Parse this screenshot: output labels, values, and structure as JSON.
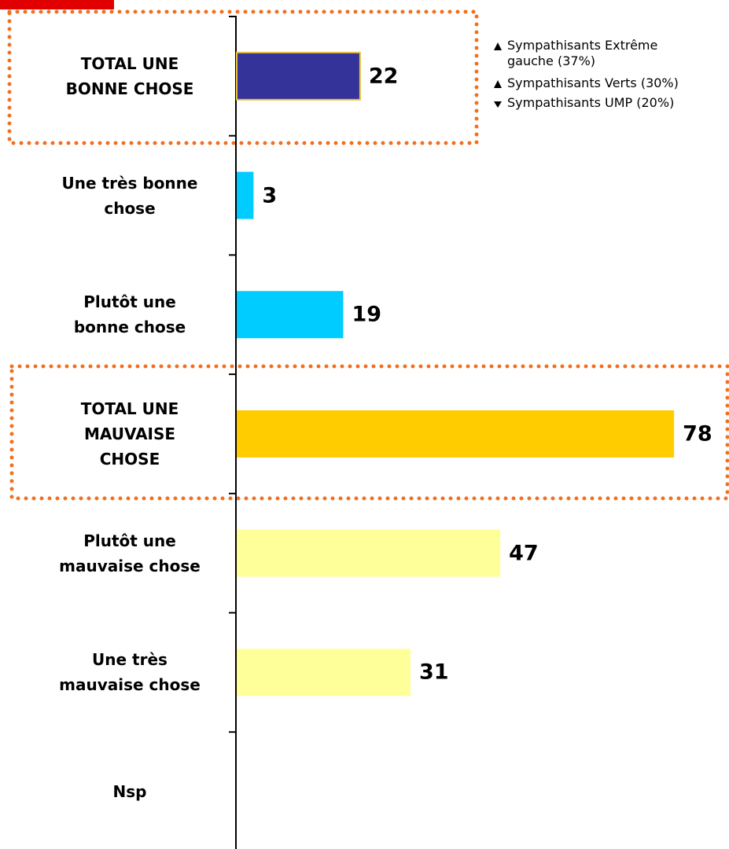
{
  "chart_data": {
    "type": "bar",
    "orientation": "horizontal",
    "categories": [
      "TOTAL UNE\nBONNE CHOSE",
      "Une très bonne\nchose",
      "Plutôt une\nbonne chose",
      "TOTAL UNE\nMAUVAISE\nCHOSE",
      "Plutôt une\nmauvaise chose",
      "Une très\nmauvaise chose",
      "Nsp"
    ],
    "values": [
      22,
      3,
      19,
      78,
      47,
      31,
      null
    ],
    "colors": [
      "#333399",
      "#00ccff",
      "#00ccff",
      "#ffcc00",
      "#ffff99",
      "#ffff99",
      null
    ],
    "xlim": [
      0,
      100
    ],
    "annotations": [
      {
        "text": "Sympathisants Extrême\ngauche (37%)",
        "direction": "up"
      },
      {
        "text": "Sympathisants Verts (30%)",
        "direction": "up"
      },
      {
        "text": "Sympathisants UMP (20%)",
        "direction": "down"
      }
    ]
  }
}
